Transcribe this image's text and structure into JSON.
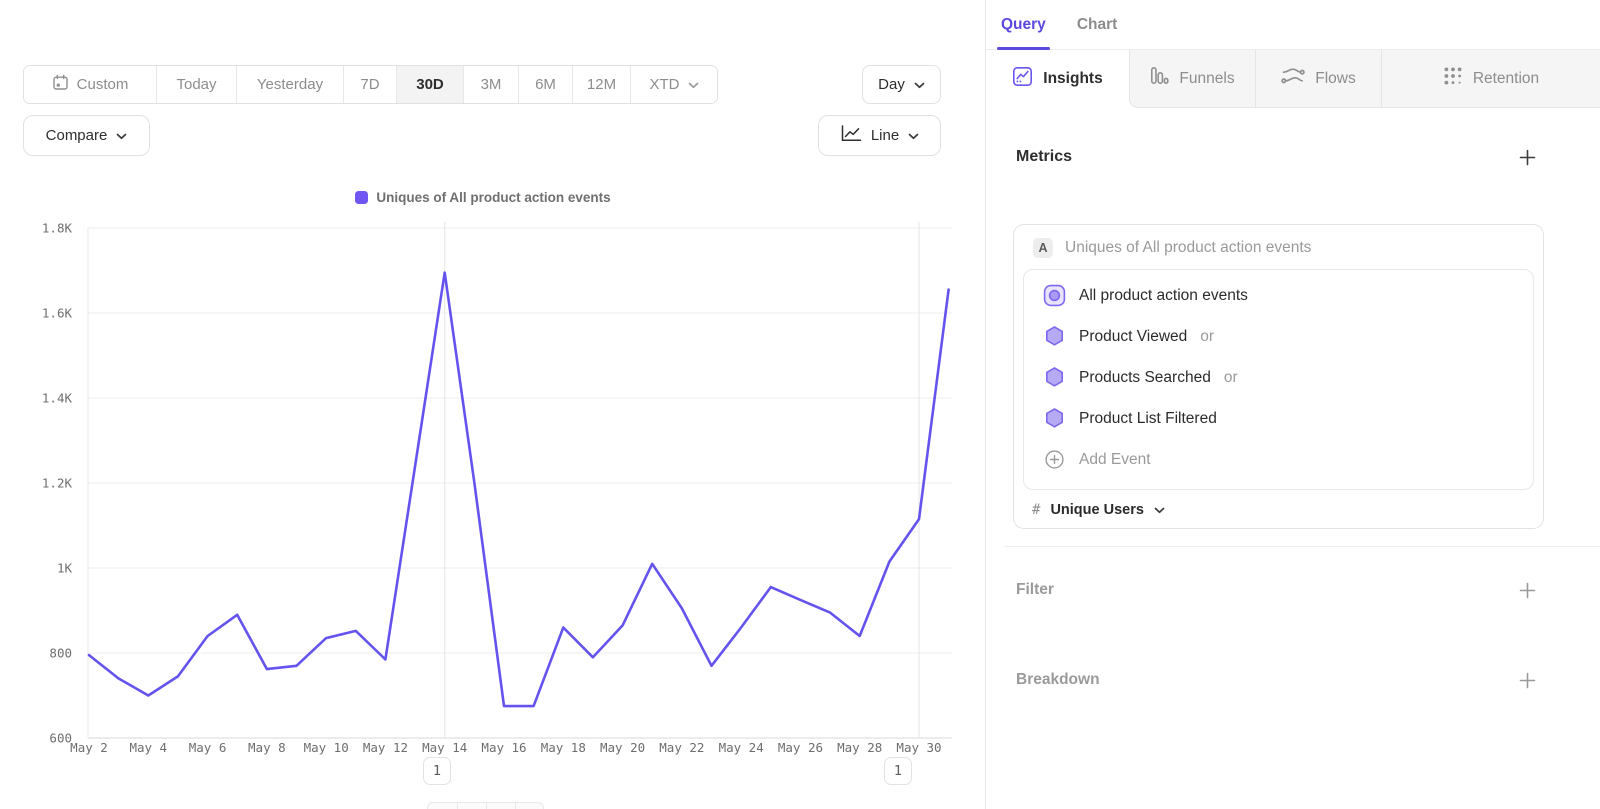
{
  "colors": {
    "accent_purple": "#5b48dd",
    "line_purple": "#6553ee",
    "hexagon_fill": "#b7aaf4",
    "hexagon_border": "#7e68ef",
    "selected_bg": "#f3f3f3"
  },
  "toolbar": {
    "ranges": [
      {
        "label": "Custom",
        "icon": "calendar"
      },
      {
        "label": "Today"
      },
      {
        "label": "Yesterday"
      },
      {
        "label": "7D"
      },
      {
        "label": "30D"
      },
      {
        "label": "3M"
      },
      {
        "label": "6M"
      },
      {
        "label": "12M"
      },
      {
        "label": "XTD",
        "chevron": true
      }
    ],
    "selected_range": "30D",
    "granularity": {
      "label": "Day"
    },
    "compare": {
      "label": "Compare"
    },
    "chart_type": {
      "label": "Line"
    }
  },
  "legend": {
    "label": "Uniques of All product action events",
    "color": "#7156f2"
  },
  "chart_data": {
    "type": "line",
    "title": "Uniques of All product action events",
    "categories": [
      "May 2",
      "May 3",
      "May 4",
      "May 5",
      "May 6",
      "May 7",
      "May 8",
      "May 9",
      "May 10",
      "May 11",
      "May 12",
      "May 13",
      "May 14",
      "May 15",
      "May 16",
      "May 17",
      "May 18",
      "May 19",
      "May 20",
      "May 21",
      "May 22",
      "May 23",
      "May 24",
      "May 25",
      "May 26",
      "May 27",
      "May 28",
      "May 29",
      "May 30",
      "May 31"
    ],
    "series": [
      {
        "name": "Uniques of All product action events",
        "color": "#6553ee",
        "values": [
          795,
          740,
          700,
          745,
          840,
          890,
          762,
          770,
          835,
          852,
          785,
          1240,
          1695,
          1200,
          675,
          675,
          860,
          790,
          865,
          1010,
          905,
          770,
          860,
          955,
          925,
          895,
          840,
          1015,
          1115,
          1655
        ]
      }
    ],
    "ylim": [
      600,
      1800
    ],
    "yticks": [
      {
        "value": 600,
        "label": "600"
      },
      {
        "value": 800,
        "label": "800"
      },
      {
        "value": 1000,
        "label": "1K"
      },
      {
        "value": 1200,
        "label": "1.2K"
      },
      {
        "value": 1400,
        "label": "1.4K"
      },
      {
        "value": 1600,
        "label": "1.6K"
      },
      {
        "value": 1800,
        "label": "1.8K"
      }
    ],
    "x_tick_step": 2,
    "v_gridline_categories": [
      "May 14",
      "May 30"
    ],
    "grid": true,
    "legend_position": "top"
  },
  "annotations": [
    {
      "label": "1",
      "at": "May 14"
    },
    {
      "label": "1",
      "at": "May 30"
    }
  ],
  "query_panel": {
    "header_tabs": [
      {
        "label": "Query",
        "selected": true
      },
      {
        "label": "Chart",
        "selected": false
      }
    ],
    "report_tabs": [
      {
        "label": "Insights",
        "icon": "insights",
        "selected": true
      },
      {
        "label": "Funnels",
        "icon": "funnels",
        "selected": false
      },
      {
        "label": "Flows",
        "icon": "flows",
        "selected": false
      },
      {
        "label": "Retention",
        "icon": "retention",
        "selected": false
      }
    ],
    "metrics": {
      "title": "Metrics",
      "metric_letter": "A",
      "metric_title": "Uniques of All product action events",
      "events": [
        {
          "label": "All product action events",
          "suffix": "",
          "icon": "custom-event"
        },
        {
          "label": "Product Viewed",
          "suffix": "or",
          "icon": "hexagon"
        },
        {
          "label": "Products Searched",
          "suffix": "or",
          "icon": "hexagon"
        },
        {
          "label": "Product List Filtered",
          "suffix": "",
          "icon": "hexagon"
        }
      ],
      "add_event_label": "Add Event",
      "measurement": {
        "prefix": "#",
        "label": "Unique Users"
      }
    },
    "sections": [
      {
        "label": "Filter"
      },
      {
        "label": "Breakdown"
      }
    ]
  }
}
